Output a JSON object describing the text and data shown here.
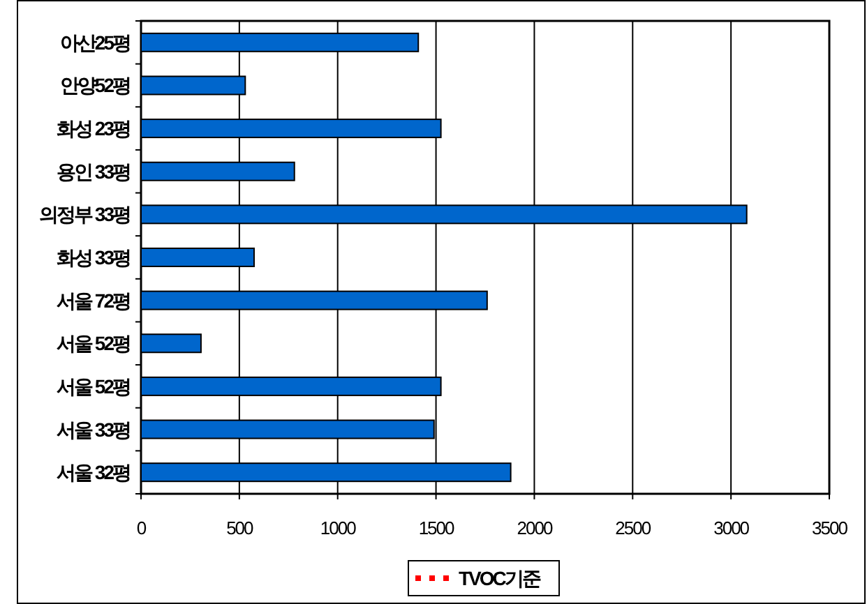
{
  "chart_data": {
    "type": "bar",
    "orientation": "horizontal",
    "categories": [
      "아산25평",
      "안양52평",
      "화성 23평",
      "용인 33평",
      "의정부 33평",
      "화성 33평",
      "서울 72평",
      "서울 52평",
      "서울 52평",
      "서울 33평",
      "서울 32평"
    ],
    "series": [
      {
        "type": "bar",
        "color": "#0066cc",
        "values": [
          1410,
          530,
          1525,
          780,
          3080,
          575,
          1760,
          305,
          1525,
          1490,
          1880
        ]
      },
      {
        "type": "line",
        "name": "TVOC기준",
        "color": "#ff0000",
        "line_style": "dotted",
        "values": [
          null,
          null,
          null,
          null,
          null,
          null,
          null,
          null,
          null,
          null,
          null
        ]
      }
    ],
    "xlim": [
      0,
      3500
    ],
    "xticks": [
      0,
      500,
      1000,
      1500,
      2000,
      2500,
      3000,
      3500
    ],
    "grid": "x",
    "legend": "bottom"
  }
}
